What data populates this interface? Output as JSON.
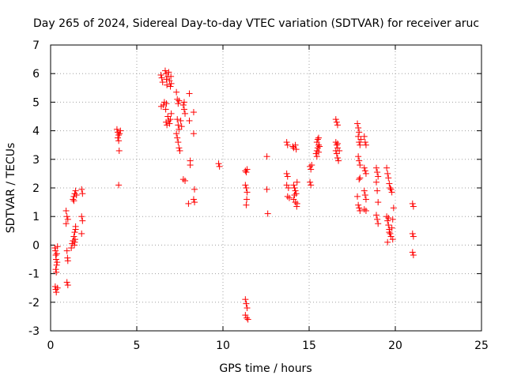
{
  "chart_data": {
    "type": "scatter",
    "title": "Day 265 of 2024, Sidereal Day-to-day VTEC variation (SDTVAR) for receiver aruc",
    "xlabel": "GPS time / hours",
    "ylabel": "SDTVAR / TECUs",
    "xlim": [
      0,
      25
    ],
    "ylim": [
      -3,
      7
    ],
    "x_ticks": [
      "0",
      "5",
      "10",
      "15",
      "20",
      "25"
    ],
    "y_ticks": [
      "-3",
      "-2",
      "-1",
      "0",
      "1",
      "2",
      "3",
      "4",
      "5",
      "6",
      "7"
    ],
    "grid": true,
    "marker": "+",
    "color": "#ff0000",
    "series": [
      {
        "name": "SDTVAR",
        "points": [
          [
            0.25,
            -0.1
          ],
          [
            0.28,
            -0.2
          ],
          [
            0.3,
            -0.35
          ],
          [
            0.32,
            -0.5
          ],
          [
            0.35,
            -0.7
          ],
          [
            0.3,
            -0.85
          ],
          [
            0.33,
            -0.95
          ],
          [
            0.36,
            -0.3
          ],
          [
            0.4,
            -0.05
          ],
          [
            0.27,
            -1.45
          ],
          [
            0.3,
            -1.55
          ],
          [
            0.33,
            -1.65
          ],
          [
            0.4,
            -1.5
          ],
          [
            0.38,
            -0.6
          ],
          [
            0.9,
            1.2
          ],
          [
            0.95,
            1.0
          ],
          [
            0.9,
            0.75
          ],
          [
            1.0,
            0.9
          ],
          [
            0.95,
            -0.2
          ],
          [
            0.98,
            -0.45
          ],
          [
            1.0,
            -0.55
          ],
          [
            0.95,
            -1.3
          ],
          [
            1.0,
            -1.4
          ],
          [
            1.2,
            -0.1
          ],
          [
            1.25,
            0.05
          ],
          [
            1.3,
            0.15
          ],
          [
            1.35,
            0.3
          ],
          [
            1.4,
            0.45
          ],
          [
            1.45,
            0.55
          ],
          [
            1.38,
            0.0
          ],
          [
            1.42,
            0.2
          ],
          [
            1.3,
            1.6
          ],
          [
            1.35,
            1.7
          ],
          [
            1.4,
            1.8
          ],
          [
            1.45,
            1.9
          ],
          [
            1.5,
            1.75
          ],
          [
            1.35,
            1.55
          ],
          [
            1.45,
            0.65
          ],
          [
            1.4,
            0.1
          ],
          [
            1.8,
            1.95
          ],
          [
            1.85,
            1.8
          ],
          [
            1.8,
            1.0
          ],
          [
            1.85,
            0.85
          ],
          [
            1.8,
            0.4
          ],
          [
            3.85,
            4.05
          ],
          [
            3.9,
            3.95
          ],
          [
            3.95,
            3.85
          ],
          [
            3.9,
            3.75
          ],
          [
            3.95,
            3.65
          ],
          [
            4.0,
            3.9
          ],
          [
            4.05,
            4.0
          ],
          [
            3.98,
            3.3
          ],
          [
            3.95,
            2.1
          ],
          [
            6.4,
            5.95
          ],
          [
            6.45,
            5.85
          ],
          [
            6.5,
            5.7
          ],
          [
            6.42,
            4.85
          ],
          [
            6.55,
            4.9
          ],
          [
            6.6,
            5.0
          ],
          [
            6.65,
            6.1
          ],
          [
            6.7,
            6.0
          ],
          [
            6.72,
            5.8
          ],
          [
            6.75,
            5.6
          ],
          [
            6.8,
            5.9
          ],
          [
            6.85,
            6.05
          ],
          [
            6.9,
            5.75
          ],
          [
            6.95,
            5.55
          ],
          [
            6.7,
            4.3
          ],
          [
            6.75,
            4.2
          ],
          [
            6.8,
            4.5
          ],
          [
            6.85,
            4.35
          ],
          [
            6.9,
            4.25
          ],
          [
            6.95,
            4.4
          ],
          [
            7.0,
            4.6
          ],
          [
            6.68,
            4.75
          ],
          [
            6.72,
            4.95
          ],
          [
            6.98,
            5.9
          ],
          [
            7.0,
            5.65
          ],
          [
            7.3,
            5.35
          ],
          [
            7.35,
            5.1
          ],
          [
            7.4,
            4.95
          ],
          [
            7.35,
            4.4
          ],
          [
            7.4,
            4.2
          ],
          [
            7.45,
            4.05
          ],
          [
            7.3,
            3.9
          ],
          [
            7.4,
            3.6
          ],
          [
            7.45,
            3.4
          ],
          [
            7.5,
            3.3
          ],
          [
            7.55,
            4.35
          ],
          [
            7.6,
            4.15
          ],
          [
            7.35,
            3.75
          ],
          [
            7.45,
            5.05
          ],
          [
            7.7,
            4.9
          ],
          [
            7.75,
            5.0
          ],
          [
            7.75,
            4.75
          ],
          [
            7.8,
            4.6
          ],
          [
            7.7,
            2.3
          ],
          [
            7.8,
            2.25
          ],
          [
            8.05,
            5.3
          ],
          [
            8.05,
            4.35
          ],
          [
            8.1,
            2.95
          ],
          [
            8.1,
            2.8
          ],
          [
            8.0,
            1.45
          ],
          [
            8.3,
            4.65
          ],
          [
            8.3,
            3.9
          ],
          [
            8.35,
            1.95
          ],
          [
            8.3,
            1.6
          ],
          [
            8.35,
            1.5
          ],
          [
            9.75,
            2.85
          ],
          [
            9.8,
            2.75
          ],
          [
            11.3,
            2.6
          ],
          [
            11.35,
            2.55
          ],
          [
            11.4,
            2.65
          ],
          [
            11.3,
            2.1
          ],
          [
            11.35,
            2.0
          ],
          [
            11.4,
            1.85
          ],
          [
            11.38,
            1.6
          ],
          [
            11.35,
            1.4
          ],
          [
            11.3,
            -1.9
          ],
          [
            11.35,
            -2.05
          ],
          [
            11.4,
            -2.2
          ],
          [
            11.3,
            -2.45
          ],
          [
            11.38,
            -2.55
          ],
          [
            11.45,
            -2.6
          ],
          [
            12.55,
            3.1
          ],
          [
            12.55,
            1.95
          ],
          [
            12.6,
            1.1
          ],
          [
            13.7,
            3.6
          ],
          [
            13.75,
            3.5
          ],
          [
            13.7,
            2.5
          ],
          [
            13.75,
            2.4
          ],
          [
            13.7,
            2.1
          ],
          [
            13.8,
            2.0
          ],
          [
            13.75,
            1.7
          ],
          [
            13.85,
            1.65
          ],
          [
            14.05,
            3.45
          ],
          [
            14.1,
            3.4
          ],
          [
            14.2,
            3.5
          ],
          [
            14.25,
            3.35
          ],
          [
            14.1,
            2.1
          ],
          [
            14.15,
            2.0
          ],
          [
            14.2,
            1.9
          ],
          [
            14.25,
            1.8
          ],
          [
            14.1,
            1.6
          ],
          [
            14.2,
            1.5
          ],
          [
            14.3,
            1.45
          ],
          [
            14.15,
            1.75
          ],
          [
            14.3,
            2.2
          ],
          [
            14.28,
            1.35
          ],
          [
            15.05,
            2.75
          ],
          [
            15.1,
            2.65
          ],
          [
            15.15,
            2.8
          ],
          [
            15.05,
            2.2
          ],
          [
            15.1,
            2.1
          ],
          [
            15.4,
            3.2
          ],
          [
            15.45,
            3.3
          ],
          [
            15.5,
            3.4
          ],
          [
            15.55,
            3.5
          ],
          [
            15.45,
            3.6
          ],
          [
            15.5,
            3.7
          ],
          [
            15.55,
            3.75
          ],
          [
            15.45,
            3.1
          ],
          [
            15.55,
            3.25
          ],
          [
            15.6,
            3.45
          ],
          [
            16.55,
            4.4
          ],
          [
            16.6,
            4.3
          ],
          [
            16.65,
            4.2
          ],
          [
            16.55,
            3.6
          ],
          [
            16.6,
            3.5
          ],
          [
            16.65,
            3.4
          ],
          [
            16.55,
            3.3
          ],
          [
            16.6,
            3.2
          ],
          [
            16.65,
            3.05
          ],
          [
            16.7,
            2.95
          ],
          [
            16.75,
            3.3
          ],
          [
            16.65,
            3.55
          ],
          [
            17.8,
            4.25
          ],
          [
            17.85,
            4.1
          ],
          [
            17.9,
            3.95
          ],
          [
            17.85,
            3.8
          ],
          [
            17.9,
            3.6
          ],
          [
            17.95,
            3.5
          ],
          [
            17.85,
            3.1
          ],
          [
            17.9,
            2.95
          ],
          [
            17.95,
            2.8
          ],
          [
            17.9,
            2.3
          ],
          [
            17.95,
            2.35
          ],
          [
            17.8,
            1.7
          ],
          [
            17.85,
            1.4
          ],
          [
            17.9,
            1.3
          ],
          [
            17.95,
            1.2
          ],
          [
            18.0,
            3.7
          ],
          [
            18.2,
            3.8
          ],
          [
            18.25,
            3.6
          ],
          [
            18.3,
            3.5
          ],
          [
            18.2,
            2.7
          ],
          [
            18.25,
            2.6
          ],
          [
            18.3,
            2.5
          ],
          [
            18.2,
            1.9
          ],
          [
            18.25,
            1.75
          ],
          [
            18.3,
            1.6
          ],
          [
            18.2,
            1.25
          ],
          [
            18.3,
            1.2
          ],
          [
            18.9,
            2.7
          ],
          [
            18.95,
            2.55
          ],
          [
            19.0,
            2.4
          ],
          [
            18.9,
            2.2
          ],
          [
            18.95,
            1.9
          ],
          [
            19.0,
            1.5
          ],
          [
            18.9,
            1.05
          ],
          [
            18.95,
            0.9
          ],
          [
            19.0,
            0.75
          ],
          [
            19.5,
            2.7
          ],
          [
            19.55,
            2.5
          ],
          [
            19.6,
            2.35
          ],
          [
            19.65,
            2.15
          ],
          [
            19.7,
            2.0
          ],
          [
            19.75,
            1.95
          ],
          [
            19.8,
            1.85
          ],
          [
            19.5,
            1.0
          ],
          [
            19.55,
            0.85
          ],
          [
            19.6,
            0.7
          ],
          [
            19.65,
            0.55
          ],
          [
            19.7,
            0.4
          ],
          [
            19.75,
            0.3
          ],
          [
            19.8,
            0.6
          ],
          [
            19.85,
            0.9
          ],
          [
            19.9,
            1.3
          ],
          [
            19.55,
            0.1
          ],
          [
            19.65,
            0.45
          ],
          [
            19.85,
            0.2
          ],
          [
            19.6,
            0.95
          ],
          [
            21.0,
            1.45
          ],
          [
            21.05,
            1.35
          ],
          [
            21.0,
            0.4
          ],
          [
            21.05,
            0.3
          ],
          [
            21.0,
            -0.25
          ],
          [
            21.05,
            -0.35
          ]
        ]
      }
    ]
  }
}
